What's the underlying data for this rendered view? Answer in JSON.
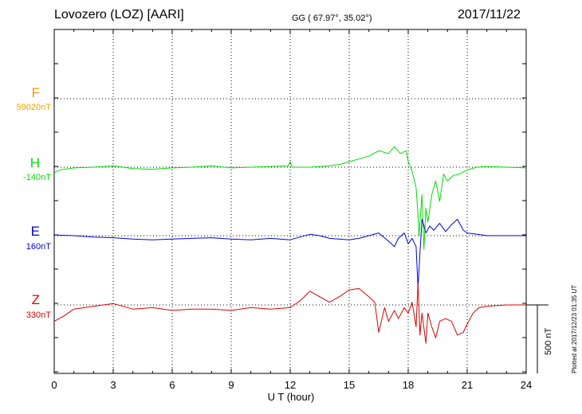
{
  "header": {
    "station": "Lovozero (LOZ)  [AARI]",
    "coords": "GG ( 67.97°,  35.02°)",
    "date": "2017/11/22"
  },
  "scale_label": "500 nT",
  "plotted_at": "Plotted at 2017/12/23 01:35 UT",
  "colors": {
    "F": "#f0a000",
    "H": "#00dd00",
    "E": "#0000dd",
    "Z": "#dd0000",
    "grid": "#000000"
  },
  "chart_data": {
    "type": "line",
    "xlabel": "U T (hour)",
    "xlim": [
      0,
      24
    ],
    "xticks": [
      "0",
      "3",
      "6",
      "9",
      "12",
      "15",
      "18",
      "21",
      "24"
    ],
    "grid": true,
    "series": [
      {
        "name": "F",
        "baseline": "59020nT",
        "points": []
      },
      {
        "name": "H",
        "baseline": "-140nT",
        "points": [
          [
            0,
            -40
          ],
          [
            0.3,
            -20
          ],
          [
            1,
            -5
          ],
          [
            2,
            0
          ],
          [
            3,
            10
          ],
          [
            4,
            -10
          ],
          [
            5,
            -15
          ],
          [
            6,
            -5
          ],
          [
            7,
            0
          ],
          [
            8,
            10
          ],
          [
            9,
            -5
          ],
          [
            10,
            0
          ],
          [
            11,
            5
          ],
          [
            11.9,
            10
          ],
          [
            12,
            40
          ],
          [
            12.1,
            0
          ],
          [
            13,
            0
          ],
          [
            14,
            10
          ],
          [
            14.5,
            20
          ],
          [
            15,
            40
          ],
          [
            15.5,
            60
          ],
          [
            16,
            80
          ],
          [
            16.5,
            120
          ],
          [
            17,
            100
          ],
          [
            17.3,
            150
          ],
          [
            17.6,
            100
          ],
          [
            17.9,
            120
          ],
          [
            18,
            40
          ],
          [
            18.2,
            -30
          ],
          [
            18.4,
            -150
          ],
          [
            18.5,
            -350
          ],
          [
            18.55,
            -500
          ],
          [
            18.6,
            -400
          ],
          [
            18.7,
            -200
          ],
          [
            18.8,
            -600
          ],
          [
            18.9,
            -300
          ],
          [
            19,
            -400
          ],
          [
            19.2,
            -200
          ],
          [
            19.4,
            -100
          ],
          [
            19.6,
            -250
          ],
          [
            19.8,
            -50
          ],
          [
            20,
            -100
          ],
          [
            20.3,
            -60
          ],
          [
            20.6,
            -50
          ],
          [
            21,
            -20
          ],
          [
            21.5,
            0
          ],
          [
            22,
            5
          ],
          [
            23,
            0
          ],
          [
            24,
            -5
          ]
        ]
      },
      {
        "name": "E",
        "baseline": "160nT",
        "points": [
          [
            0,
            5
          ],
          [
            1,
            0
          ],
          [
            2,
            -10
          ],
          [
            3,
            -15
          ],
          [
            4,
            -25
          ],
          [
            5,
            -30
          ],
          [
            6,
            -25
          ],
          [
            7,
            -20
          ],
          [
            8,
            -15
          ],
          [
            9,
            -25
          ],
          [
            10,
            -30
          ],
          [
            11,
            -20
          ],
          [
            12,
            -30
          ],
          [
            12.5,
            -10
          ],
          [
            13,
            10
          ],
          [
            13.5,
            0
          ],
          [
            14,
            -20
          ],
          [
            15,
            -30
          ],
          [
            15.5,
            -20
          ],
          [
            16,
            0
          ],
          [
            16.5,
            20
          ],
          [
            17,
            -40
          ],
          [
            17.3,
            -80
          ],
          [
            17.5,
            -20
          ],
          [
            17.8,
            20
          ],
          [
            18,
            -60
          ],
          [
            18.2,
            -20
          ],
          [
            18.4,
            -80
          ],
          [
            18.5,
            -380
          ],
          [
            18.6,
            -120
          ],
          [
            18.7,
            120
          ],
          [
            18.9,
            20
          ],
          [
            19.1,
            70
          ],
          [
            19.3,
            40
          ],
          [
            19.6,
            90
          ],
          [
            19.9,
            30
          ],
          [
            20.2,
            80
          ],
          [
            20.5,
            120
          ],
          [
            20.8,
            40
          ],
          [
            21,
            20
          ],
          [
            21.5,
            10
          ],
          [
            22,
            0
          ],
          [
            23,
            0
          ],
          [
            24,
            0
          ]
        ]
      },
      {
        "name": "Z",
        "baseline": "330nT",
        "points": [
          [
            0,
            -120
          ],
          [
            0.5,
            -80
          ],
          [
            1,
            -30
          ],
          [
            2,
            -10
          ],
          [
            3,
            10
          ],
          [
            4,
            -30
          ],
          [
            5,
            -20
          ],
          [
            6,
            -40
          ],
          [
            7,
            -30
          ],
          [
            8,
            -30
          ],
          [
            9,
            -40
          ],
          [
            10,
            -20
          ],
          [
            11,
            -30
          ],
          [
            12,
            -20
          ],
          [
            12.5,
            30
          ],
          [
            13,
            100
          ],
          [
            13.5,
            60
          ],
          [
            14,
            20
          ],
          [
            14.5,
            60
          ],
          [
            15,
            110
          ],
          [
            15.5,
            120
          ],
          [
            16,
            60
          ],
          [
            16.3,
            20
          ],
          [
            16.5,
            -200
          ],
          [
            16.8,
            -20
          ],
          [
            17,
            -120
          ],
          [
            17.3,
            -40
          ],
          [
            17.5,
            -100
          ],
          [
            17.8,
            -20
          ],
          [
            18,
            -60
          ],
          [
            18.2,
            20
          ],
          [
            18.4,
            -160
          ],
          [
            18.5,
            160
          ],
          [
            18.6,
            -220
          ],
          [
            18.7,
            -60
          ],
          [
            18.9,
            -280
          ],
          [
            19,
            -60
          ],
          [
            19.2,
            -160
          ],
          [
            19.4,
            -240
          ],
          [
            19.6,
            -120
          ],
          [
            19.9,
            -100
          ],
          [
            20.2,
            -120
          ],
          [
            20.5,
            -220
          ],
          [
            20.8,
            -200
          ],
          [
            21,
            -140
          ],
          [
            21.3,
            -60
          ],
          [
            21.6,
            -20
          ],
          [
            22,
            -10
          ],
          [
            23,
            0
          ],
          [
            24,
            0
          ]
        ]
      }
    ]
  }
}
